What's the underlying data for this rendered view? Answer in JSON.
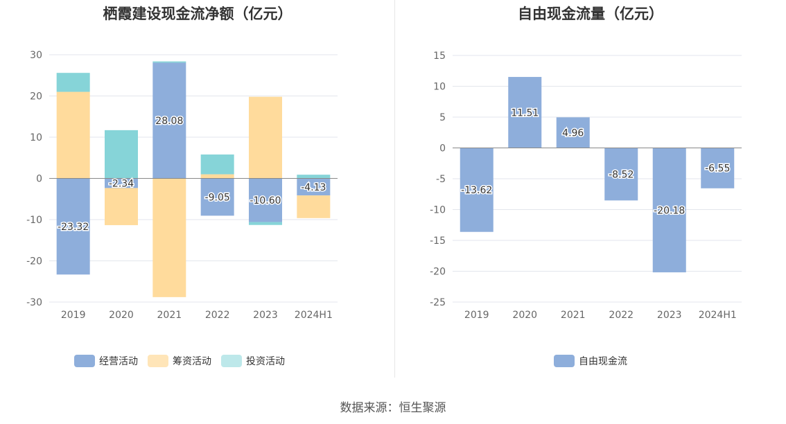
{
  "left": {
    "title": "栖霞建设现金流净额（亿元）",
    "colors": {
      "经营活动": "#8eaedb",
      "筹资活动": "#ffdb9c",
      "投资活动": "#86d4d8"
    },
    "chart_data": {
      "type": "bar",
      "stacked": true,
      "title": "栖霞建设现金流净额（亿元）",
      "categories": [
        "2019",
        "2020",
        "2021",
        "2022",
        "2023",
        "2024H1"
      ],
      "ylim": [
        -30,
        30
      ],
      "yticks": [
        30,
        20,
        10,
        0,
        -10,
        -20,
        -30
      ],
      "grid": true,
      "legend_position": "bottom",
      "series": [
        {
          "name": "经营活动",
          "values": [
            -23.32,
            -2.34,
            28.08,
            -9.05,
            -10.6,
            -4.13
          ],
          "labels": [
            "-23.32",
            "-2.34",
            "28.08",
            "-9.05",
            "-10.60",
            "-4.13"
          ]
        },
        {
          "name": "筹资活动",
          "values": [
            21.0,
            -9.0,
            -28.8,
            1.0,
            19.8,
            -5.5
          ]
        },
        {
          "name": "投资活动",
          "values": [
            4.6,
            11.7,
            0.3,
            4.8,
            -0.7,
            0.9
          ]
        }
      ]
    }
  },
  "right": {
    "title": "自由现金流量（亿元）",
    "colors": {
      "自由现金流": "#8eaedb"
    },
    "chart_data": {
      "type": "bar",
      "title": "自由现金流量（亿元）",
      "categories": [
        "2019",
        "2020",
        "2021",
        "2022",
        "2023",
        "2024H1"
      ],
      "ylim": [
        -25,
        15
      ],
      "yticks": [
        15,
        10,
        5,
        0,
        -5,
        -10,
        -15,
        -20,
        -25
      ],
      "grid": true,
      "legend_position": "bottom",
      "series": [
        {
          "name": "自由现金流",
          "values": [
            -13.62,
            11.51,
            4.96,
            -8.52,
            -20.18,
            -6.55
          ],
          "labels": [
            "-13.62",
            "11.51",
            "4.96",
            "-8.52",
            "-20.18",
            "-6.55"
          ]
        }
      ]
    }
  },
  "source": "数据来源：恒生聚源"
}
